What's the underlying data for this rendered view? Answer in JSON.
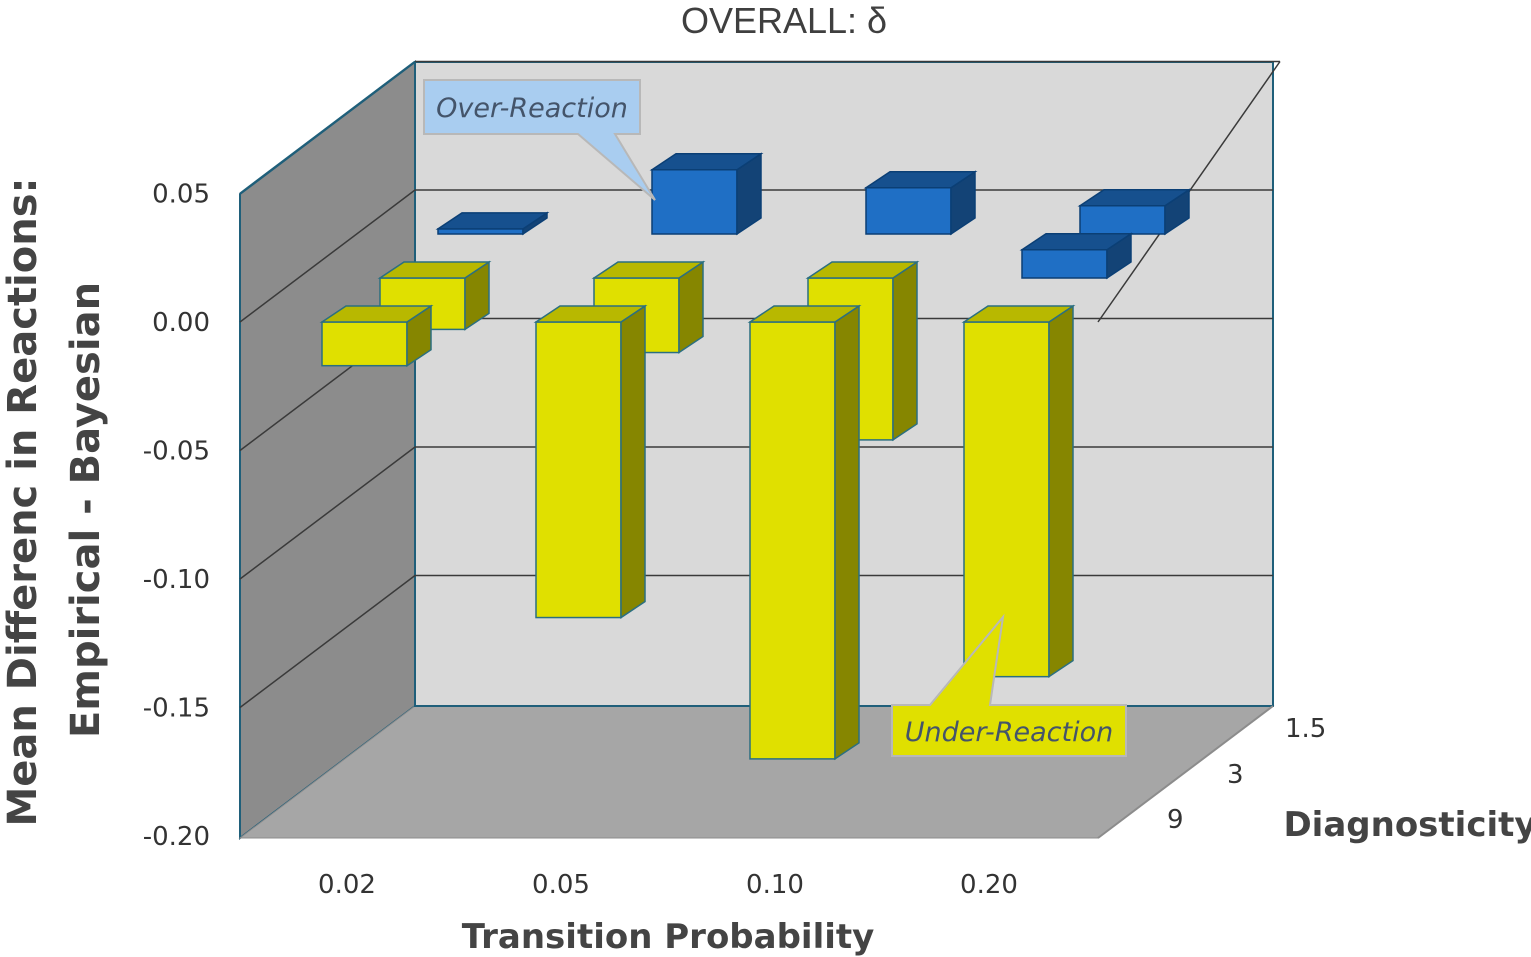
{
  "chart_data": {
    "type": "bar",
    "style": "3d-column",
    "title": "OVERALL: δ",
    "xlabel": "Transition Probability",
    "ylabel_line1": "Mean Differenc in Reactions:",
    "ylabel_line2": "Empirical - Bayesian",
    "zlabel": "Diagnosticity",
    "categories": [
      "0.02",
      "0.05",
      "0.10",
      "0.20"
    ],
    "ylim": [
      -0.2,
      0.05
    ],
    "yticks": [
      "0.05",
      "0.00",
      "-0.05",
      "-0.10",
      "-0.15",
      "-0.20"
    ],
    "ytick_values": [
      0.05,
      0.0,
      -0.05,
      -0.1,
      -0.15,
      -0.2
    ],
    "series": [
      {
        "name": "1.5",
        "values": [
          0.002,
          0.025,
          0.018,
          0.011
        ],
        "color": "#1f6fc5"
      },
      {
        "name": "3",
        "values": [
          -0.02,
          -0.029,
          -0.063,
          0.011
        ],
        "color": "#e0e000"
      },
      {
        "name": "9",
        "values": [
          -0.017,
          -0.115,
          -0.17,
          -0.138
        ],
        "color": "#e0e000"
      }
    ],
    "annotations": [
      {
        "text": "Over-Reaction"
      },
      {
        "text": "Under-Reaction"
      }
    ],
    "colors": {
      "positive": "#1f6fc5",
      "negative": "#e0e000",
      "back_wall": "#d9d9d9",
      "side_wall": "#8c8c8c",
      "floor": "#a6a6a6",
      "over_callout": "#a9cdf0",
      "under_callout": "#e0e000"
    }
  }
}
